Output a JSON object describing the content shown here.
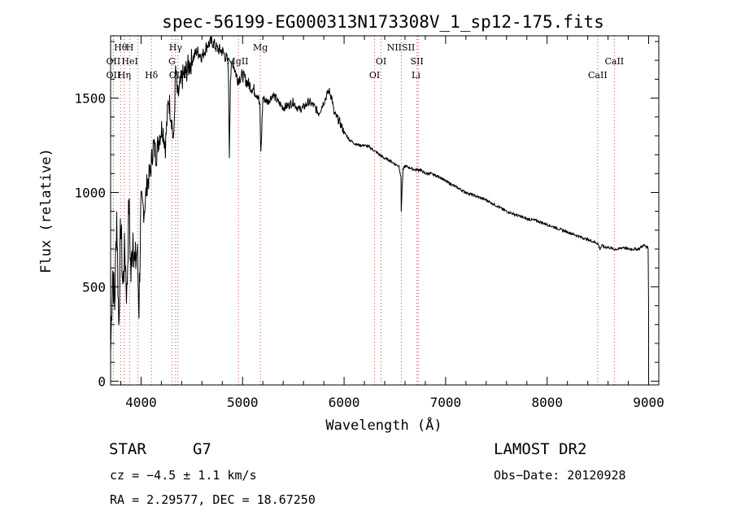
{
  "chart_data": {
    "type": "line",
    "title": "spec-56199-EG000313N173308V_1_sp12-175.fits",
    "xlabel": "Wavelength (Å)",
    "ylabel": "Flux (relative)",
    "xlim": [
      3700,
      9100
    ],
    "ylim": [
      -20,
      1830
    ],
    "x_ticks": [
      4000,
      5000,
      6000,
      7000,
      8000,
      9000
    ],
    "y_ticks": [
      0,
      500,
      1000,
      1500
    ],
    "grid": false,
    "series": [
      {
        "x": [
          3700,
          3720,
          3740,
          3760,
          3780,
          3800,
          3820,
          3840,
          3860,
          3880,
          3900,
          3920,
          3940,
          3960,
          3980,
          4000,
          4030,
          4060,
          4090,
          4120,
          4150,
          4180,
          4210,
          4240,
          4270,
          4300,
          4320,
          4340,
          4360,
          4380,
          4400,
          4450,
          4500,
          4550,
          4600,
          4650,
          4700,
          4750,
          4800,
          4850,
          4860,
          4870,
          4880,
          4900,
          4950,
          5000,
          5050,
          5100,
          5150,
          5170,
          5180,
          5200,
          5250,
          5300,
          5350,
          5400,
          5450,
          5500,
          5550,
          5600,
          5650,
          5700,
          5750,
          5800,
          5850,
          5880,
          5900,
          5950,
          6000,
          6050,
          6100,
          6150,
          6200,
          6250,
          6300,
          6350,
          6400,
          6450,
          6500,
          6540,
          6560,
          6563,
          6570,
          6580,
          6600,
          6650,
          6700,
          6750,
          6800,
          6850,
          6900,
          6950,
          7000,
          7100,
          7200,
          7300,
          7400,
          7500,
          7600,
          7700,
          7800,
          7900,
          8000,
          8100,
          8200,
          8300,
          8400,
          8450,
          8500,
          8520,
          8540,
          8560,
          8600,
          8650,
          8700,
          8750,
          8800,
          8850,
          8900,
          8950,
          8990,
          8995,
          9000
        ],
        "y": [
          150,
          600,
          400,
          900,
          300,
          850,
          500,
          700,
          450,
          950,
          550,
          800,
          600,
          700,
          400,
          950,
          900,
          1050,
          1100,
          1250,
          1200,
          1300,
          1350,
          1250,
          1500,
          1400,
          1250,
          1650,
          1500,
          1550,
          1600,
          1650,
          1700,
          1750,
          1720,
          1780,
          1800,
          1760,
          1750,
          1700,
          1650,
          1200,
          1600,
          1700,
          1600,
          1620,
          1580,
          1550,
          1520,
          1450,
          1200,
          1500,
          1480,
          1520,
          1480,
          1450,
          1460,
          1480,
          1440,
          1450,
          1480,
          1460,
          1420,
          1480,
          1540,
          1500,
          1420,
          1380,
          1320,
          1280,
          1260,
          1250,
          1250,
          1240,
          1220,
          1200,
          1180,
          1170,
          1150,
          1140,
          1080,
          900,
          1000,
          1120,
          1140,
          1130,
          1120,
          1120,
          1100,
          1100,
          1090,
          1080,
          1060,
          1030,
          1000,
          980,
          960,
          930,
          900,
          880,
          860,
          850,
          830,
          810,
          790,
          770,
          750,
          740,
          730,
          700,
          720,
          710,
          710,
          700,
          700,
          710,
          700,
          700,
          700,
          720,
          710,
          700,
          380
        ]
      }
    ],
    "line_markers": [
      {
        "label": "Hθ",
        "x": 3798,
        "row": 0
      },
      {
        "label": "H",
        "x": 3889,
        "row": 0
      },
      {
        "label": "Hγ",
        "x": 4340,
        "row": 0
      },
      {
        "label": "Mg",
        "x": 5175,
        "row": 0
      },
      {
        "label": "NIISII",
        "x": 6560,
        "row": 0
      },
      {
        "label": "OII",
        "x": 3727,
        "row": 1
      },
      {
        "label": "HeI",
        "x": 3889,
        "row": 1
      },
      {
        "label": "G",
        "x": 4304,
        "row": 1
      },
      {
        "label": "MgII",
        "x": 4950,
        "row": 1
      },
      {
        "label": "OI",
        "x": 6364,
        "row": 1
      },
      {
        "label": "SII",
        "x": 6717,
        "row": 1
      },
      {
        "label": "CaII",
        "x": 8662,
        "row": 1
      },
      {
        "label": "OII",
        "x": 3727,
        "row": 2
      },
      {
        "label": "Hη",
        "x": 3835,
        "row": 2
      },
      {
        "label": "Hδ",
        "x": 4102,
        "row": 2
      },
      {
        "label": "OIII",
        "x": 4363,
        "row": 2
      },
      {
        "label": "OI",
        "x": 6300,
        "row": 2
      },
      {
        "label": "Li",
        "x": 6708,
        "row": 2
      },
      {
        "label": "CaII",
        "x": 8498,
        "row": 2
      }
    ],
    "marker_lines_x": [
      3727,
      3798,
      3835,
      3889,
      3970,
      4102,
      4304,
      4340,
      4363,
      4959,
      5175,
      6300,
      6364,
      6563,
      6717,
      6731,
      8498,
      8662
    ]
  },
  "info": {
    "object_class": "STAR",
    "subclass": "G7",
    "survey": "LAMOST DR2",
    "redshift": "cz = −4.5 ± 1.1 km/s",
    "obs_date": "Obs−Date: 20120928",
    "coords": "RA =    2.29577, DEC =   18.67250"
  }
}
